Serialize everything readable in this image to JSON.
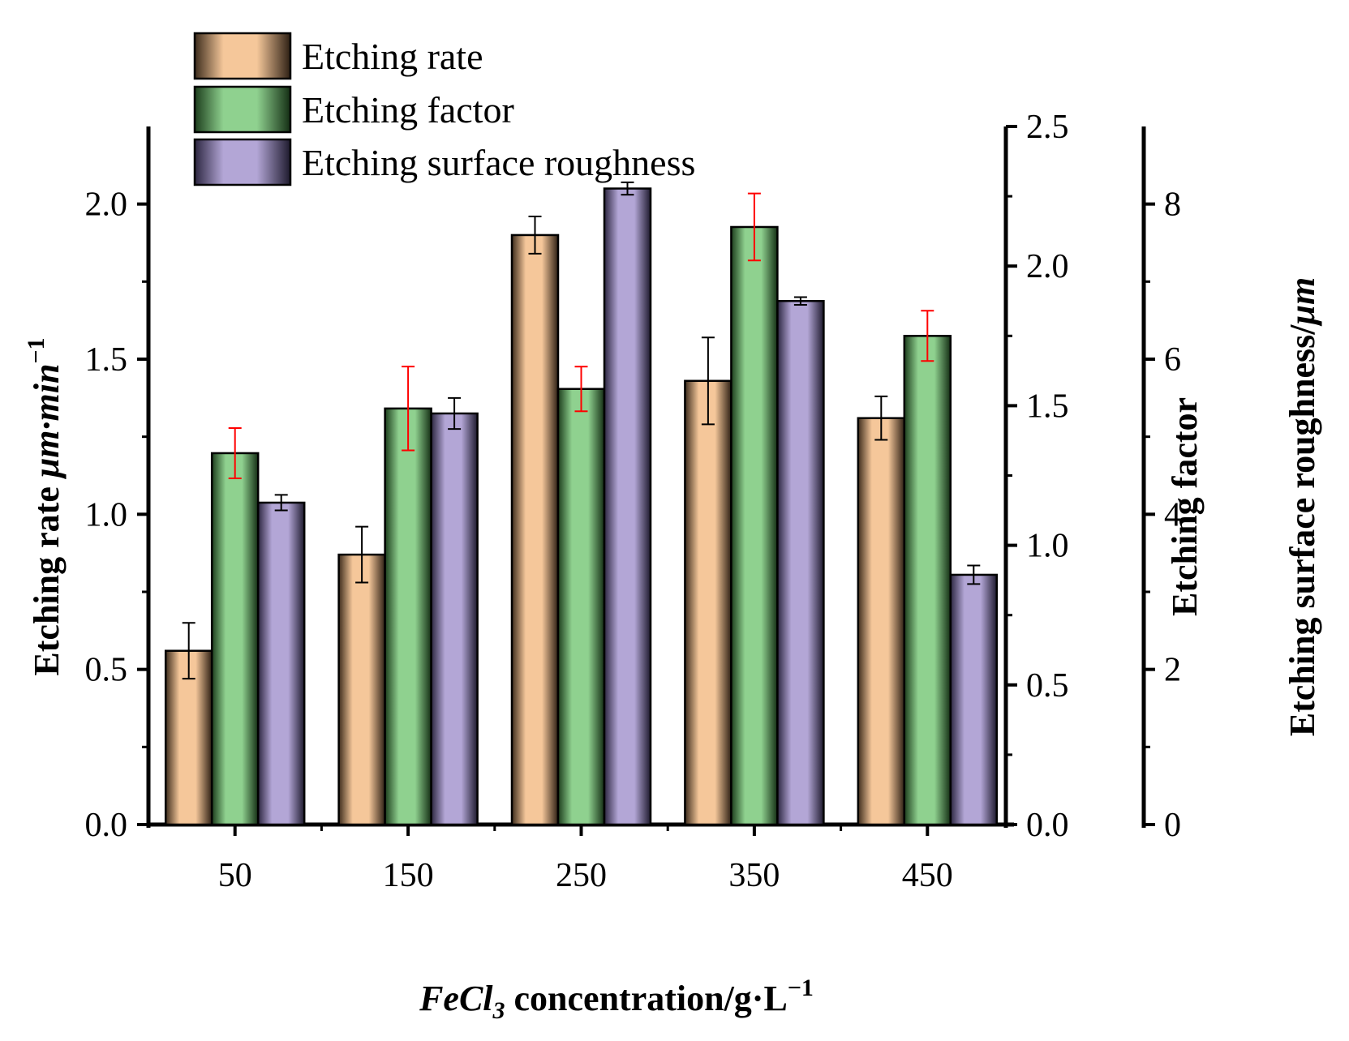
{
  "chart_data": {
    "type": "bar",
    "categories": [
      "50",
      "150",
      "250",
      "350",
      "450"
    ],
    "series": [
      {
        "name": "Etching rate",
        "axis": "left",
        "color": "#f5c79a",
        "errorbar_color": "#000000",
        "values": [
          0.56,
          0.87,
          1.9,
          1.43,
          1.31
        ],
        "errors": [
          0.09,
          0.09,
          0.06,
          0.14,
          0.07
        ]
      },
      {
        "name": "Etching factor",
        "axis": "right",
        "color": "#8fd18f",
        "errorbar_color": "#ff0000",
        "values": [
          1.33,
          1.49,
          1.56,
          2.14,
          1.75
        ],
        "errors": [
          0.09,
          0.15,
          0.08,
          0.12,
          0.09
        ]
      },
      {
        "name": "Etching surface roughness",
        "axis": "right2",
        "color": "#b3a6d6",
        "errorbar_color": "#000000",
        "values": [
          4.15,
          5.3,
          8.2,
          6.75,
          3.22
        ],
        "errors": [
          0.1,
          0.2,
          0.08,
          0.05,
          0.12
        ]
      }
    ],
    "axes": {
      "x": {
        "title_italic": "FeCl",
        "title_sub": "3",
        "title_rest": " concentration/g·L",
        "title_sup": "−1"
      },
      "left": {
        "title_main": "Etching rate ",
        "title_italic": "μm·min",
        "title_sup": "−1",
        "ylim": [
          0,
          2.25
        ],
        "ticks": [
          0.0,
          0.5,
          1.0,
          1.5,
          2.0
        ],
        "tick_labels": [
          "0.0",
          "0.5",
          "1.0",
          "1.5",
          "2.0"
        ]
      },
      "right": {
        "title": "Etching factor",
        "ylim": [
          0,
          2.5
        ],
        "ticks": [
          0.0,
          0.5,
          1.0,
          1.5,
          2.0,
          2.5
        ],
        "tick_labels": [
          "0.0",
          "0.5",
          "1.0",
          "1.5",
          "2.0",
          "2.5"
        ]
      },
      "right2": {
        "title_main": "Etching surface roughness/",
        "title_italic": "μm",
        "ylim": [
          0,
          9
        ],
        "ticks": [
          0,
          2,
          4,
          6,
          8
        ],
        "tick_labels": [
          "0",
          "2",
          "4",
          "6",
          "8"
        ]
      }
    },
    "legend": {
      "position": "top-left",
      "labels": [
        "Etching rate",
        "Etching factor",
        "Etching surface roughness"
      ]
    }
  }
}
